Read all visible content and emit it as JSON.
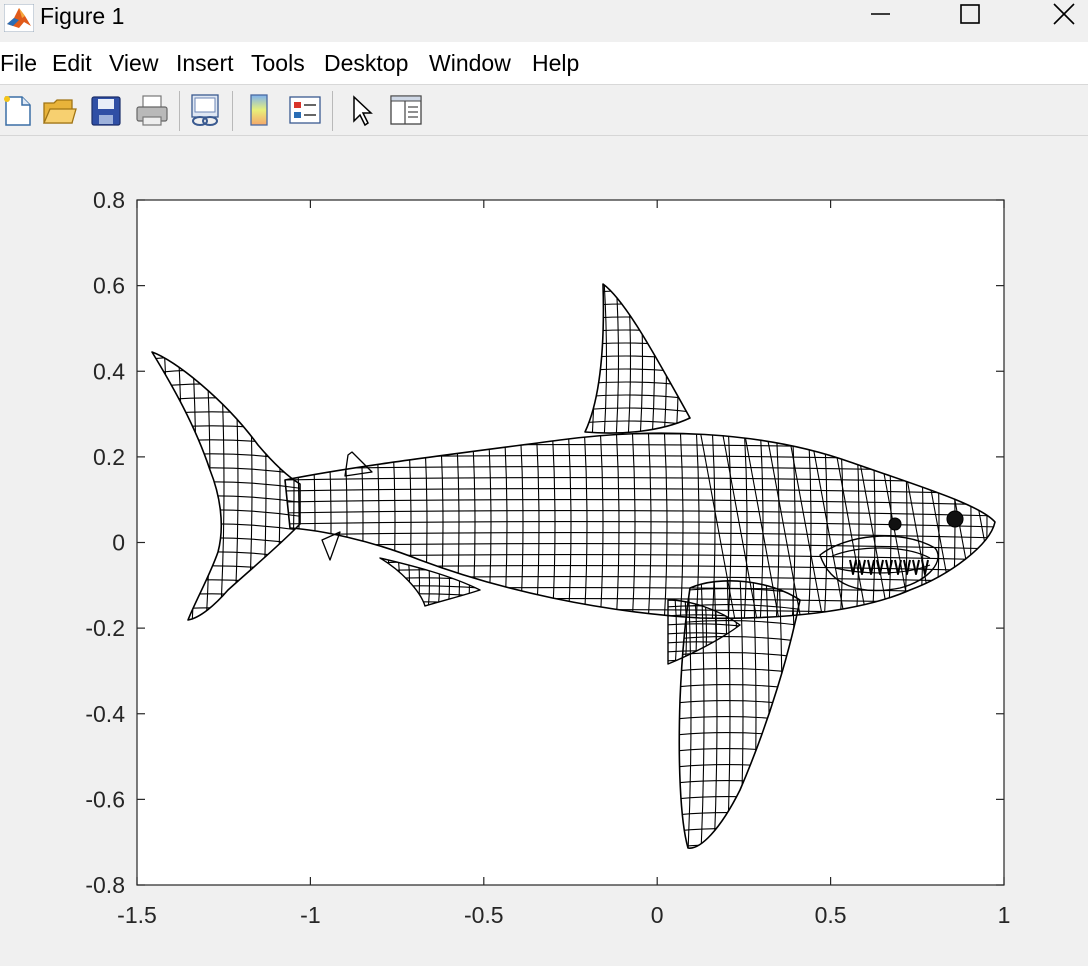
{
  "window": {
    "title": "Figure 1",
    "controls": [
      "minimize",
      "maximize",
      "close"
    ]
  },
  "menu": [
    "File",
    "Edit",
    "View",
    "Insert",
    "Tools",
    "Desktop",
    "Window",
    "Help"
  ],
  "toolbar": [
    {
      "icon": "new-figure-icon"
    },
    {
      "icon": "open-file-icon"
    },
    {
      "icon": "save-icon"
    },
    {
      "icon": "print-icon"
    },
    {
      "icon": "link-plot-icon"
    },
    {
      "icon": "insert-colorbar-icon"
    },
    {
      "icon": "insert-legend-icon"
    },
    {
      "icon": "edit-plot-pointer-icon"
    },
    {
      "icon": "property-inspector-icon"
    }
  ],
  "chart_data": {
    "type": "line",
    "title": "",
    "xlabel": "",
    "ylabel": "",
    "xlim": [
      -1.5,
      1
    ],
    "ylim": [
      -0.8,
      0.8
    ],
    "xticks": [
      -1.5,
      -1,
      -0.5,
      0,
      0.5,
      1
    ],
    "yticks": [
      0.8,
      0.6,
      0.4,
      0.2,
      0,
      -0.2,
      -0.4,
      -0.6,
      -0.8
    ],
    "xtick_labels": [
      "-1.5",
      "-1",
      "-0.5",
      "0",
      "0.5",
      "1"
    ],
    "ytick_labels": [
      "0.8",
      "0.6",
      "0.4",
      "0.2",
      "0",
      "-0.2",
      "-0.4",
      "-0.6",
      "-0.8"
    ],
    "grid": false,
    "content": "wireframe mesh of a shark",
    "color": "#000000"
  }
}
